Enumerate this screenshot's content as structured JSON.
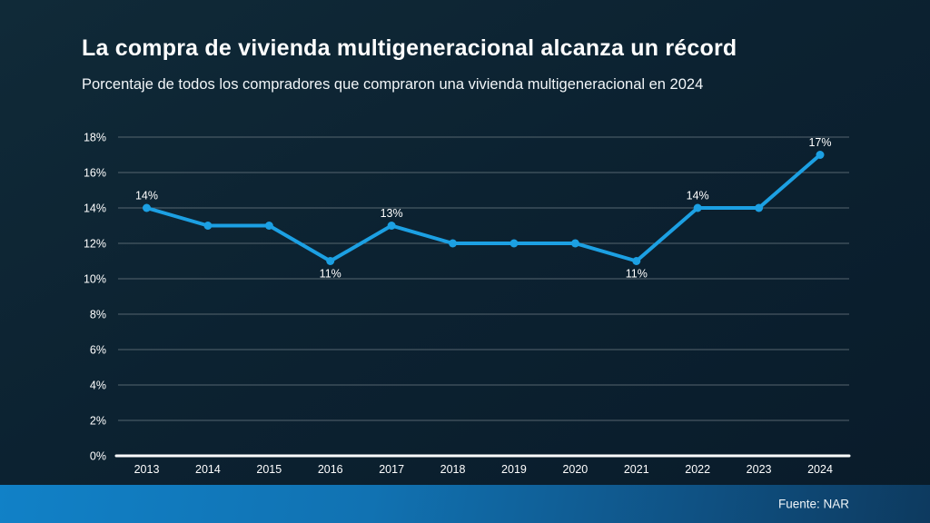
{
  "header": {
    "title": "La compra de vivienda multigeneracional alcanza un récord",
    "subtitle": "Porcentaje de todos los compradores que compraron una vivienda multigeneracional en 2024"
  },
  "footer": {
    "source": "Fuente: NAR"
  },
  "colors": {
    "line": "#1CA0E3",
    "marker": "#1CA0E3",
    "gridline": "#68767f",
    "axis_line": "#ffffff",
    "tick_text": "#ffffff",
    "point_label_text": "#ffffff"
  },
  "chart_data": {
    "type": "line",
    "title": "La compra de vivienda multigeneracional alcanza un récord",
    "subtitle": "Porcentaje de todos los compradores que compraron una vivienda multigeneracional en 2024",
    "xlabel": "",
    "ylabel": "",
    "ylim": [
      0,
      18
    ],
    "grid": true,
    "legend": "none",
    "categories": [
      "2013",
      "2014",
      "2015",
      "2016",
      "2017",
      "2018",
      "2019",
      "2020",
      "2021",
      "2022",
      "2023",
      "2024"
    ],
    "values": [
      14,
      13,
      13,
      11,
      13,
      12,
      12,
      12,
      11,
      14,
      14,
      17
    ],
    "points": [
      {
        "year": "2013",
        "value": 14,
        "label": "14%",
        "label_pos": "above"
      },
      {
        "year": "2014",
        "value": 13,
        "label": null,
        "label_pos": null
      },
      {
        "year": "2015",
        "value": 13,
        "label": null,
        "label_pos": null
      },
      {
        "year": "2016",
        "value": 11,
        "label": "11%",
        "label_pos": "below"
      },
      {
        "year": "2017",
        "value": 13,
        "label": "13%",
        "label_pos": "above"
      },
      {
        "year": "2018",
        "value": 12,
        "label": null,
        "label_pos": null
      },
      {
        "year": "2019",
        "value": 12,
        "label": null,
        "label_pos": null
      },
      {
        "year": "2020",
        "value": 12,
        "label": null,
        "label_pos": null
      },
      {
        "year": "2021",
        "value": 11,
        "label": "11%",
        "label_pos": "below"
      },
      {
        "year": "2022",
        "value": 14,
        "label": "14%",
        "label_pos": "above"
      },
      {
        "year": "2023",
        "value": 14,
        "label": null,
        "label_pos": null
      },
      {
        "year": "2024",
        "value": 17,
        "label": "17%",
        "label_pos": "above"
      }
    ],
    "yticks": [
      {
        "value": 0,
        "label": "0%"
      },
      {
        "value": 2,
        "label": "2%"
      },
      {
        "value": 4,
        "label": "4%"
      },
      {
        "value": 6,
        "label": "6%"
      },
      {
        "value": 8,
        "label": "8%"
      },
      {
        "value": 10,
        "label": "10%"
      },
      {
        "value": 12,
        "label": "12%"
      },
      {
        "value": 14,
        "label": "14%"
      },
      {
        "value": 16,
        "label": "16%"
      },
      {
        "value": 18,
        "label": "18%"
      }
    ]
  }
}
